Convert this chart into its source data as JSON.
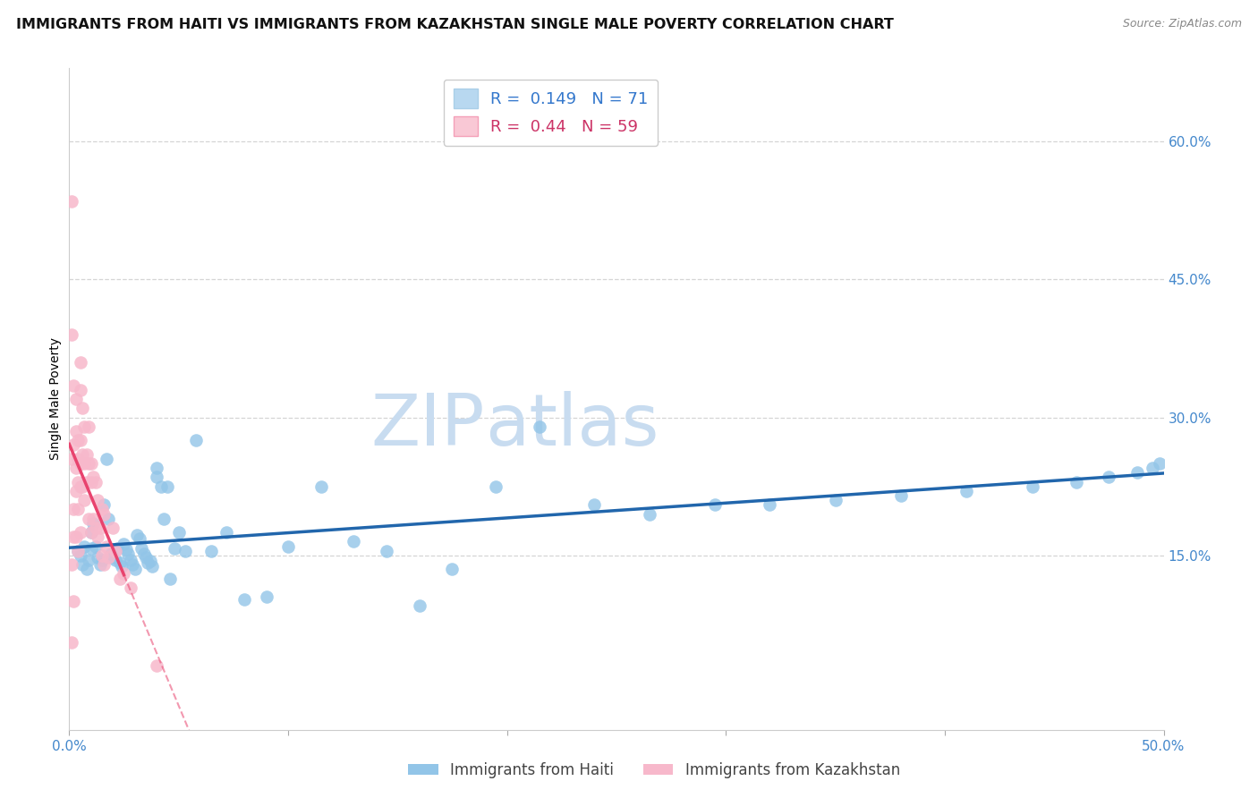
{
  "title": "IMMIGRANTS FROM HAITI VS IMMIGRANTS FROM KAZAKHSTAN SINGLE MALE POVERTY CORRELATION CHART",
  "source": "Source: ZipAtlas.com",
  "ylabel": "Single Male Poverty",
  "right_yticks": [
    "60.0%",
    "45.0%",
    "30.0%",
    "15.0%"
  ],
  "right_ytick_vals": [
    0.6,
    0.45,
    0.3,
    0.15
  ],
  "xlim": [
    0.0,
    0.5
  ],
  "ylim": [
    -0.04,
    0.68
  ],
  "haiti_R": 0.149,
  "haiti_N": 71,
  "kazakhstan_R": 0.44,
  "kazakhstan_N": 59,
  "haiti_color": "#92c5e8",
  "kazakhstan_color": "#f7b8cb",
  "haiti_line_color": "#2166ac",
  "kazakhstan_line_color": "#e8436e",
  "haiti_x": [
    0.004,
    0.005,
    0.006,
    0.007,
    0.008,
    0.009,
    0.01,
    0.01,
    0.011,
    0.012,
    0.013,
    0.014,
    0.015,
    0.016,
    0.017,
    0.018,
    0.019,
    0.02,
    0.021,
    0.022,
    0.023,
    0.024,
    0.025,
    0.026,
    0.027,
    0.028,
    0.029,
    0.03,
    0.031,
    0.032,
    0.033,
    0.034,
    0.035,
    0.036,
    0.037,
    0.038,
    0.04,
    0.04,
    0.042,
    0.043,
    0.045,
    0.046,
    0.048,
    0.05,
    0.053,
    0.058,
    0.065,
    0.072,
    0.08,
    0.09,
    0.1,
    0.115,
    0.13,
    0.145,
    0.16,
    0.175,
    0.195,
    0.215,
    0.24,
    0.265,
    0.295,
    0.32,
    0.35,
    0.38,
    0.41,
    0.44,
    0.46,
    0.475,
    0.488,
    0.495,
    0.498
  ],
  "haiti_y": [
    0.155,
    0.15,
    0.14,
    0.16,
    0.135,
    0.145,
    0.175,
    0.158,
    0.185,
    0.16,
    0.148,
    0.14,
    0.145,
    0.205,
    0.255,
    0.19,
    0.152,
    0.148,
    0.145,
    0.158,
    0.142,
    0.138,
    0.162,
    0.157,
    0.152,
    0.145,
    0.14,
    0.135,
    0.172,
    0.168,
    0.158,
    0.152,
    0.148,
    0.142,
    0.144,
    0.138,
    0.245,
    0.235,
    0.225,
    0.19,
    0.225,
    0.125,
    0.158,
    0.175,
    0.155,
    0.275,
    0.155,
    0.175,
    0.102,
    0.105,
    0.16,
    0.225,
    0.165,
    0.155,
    0.095,
    0.135,
    0.225,
    0.29,
    0.205,
    0.195,
    0.205,
    0.205,
    0.21,
    0.215,
    0.22,
    0.225,
    0.23,
    0.235,
    0.24,
    0.245,
    0.25
  ],
  "kazakhstan_x": [
    0.001,
    0.001,
    0.001,
    0.001,
    0.001,
    0.002,
    0.002,
    0.002,
    0.002,
    0.002,
    0.003,
    0.003,
    0.003,
    0.003,
    0.003,
    0.004,
    0.004,
    0.004,
    0.004,
    0.004,
    0.005,
    0.005,
    0.005,
    0.005,
    0.005,
    0.005,
    0.006,
    0.006,
    0.006,
    0.007,
    0.007,
    0.007,
    0.008,
    0.008,
    0.009,
    0.009,
    0.009,
    0.01,
    0.01,
    0.01,
    0.011,
    0.011,
    0.012,
    0.012,
    0.013,
    0.013,
    0.014,
    0.015,
    0.015,
    0.016,
    0.016,
    0.017,
    0.018,
    0.02,
    0.021,
    0.023,
    0.025,
    0.028,
    0.04
  ],
  "kazakhstan_y": [
    0.535,
    0.39,
    0.255,
    0.14,
    0.055,
    0.335,
    0.27,
    0.2,
    0.17,
    0.1,
    0.32,
    0.285,
    0.245,
    0.22,
    0.17,
    0.275,
    0.255,
    0.23,
    0.2,
    0.155,
    0.36,
    0.33,
    0.275,
    0.25,
    0.225,
    0.175,
    0.31,
    0.26,
    0.225,
    0.29,
    0.25,
    0.21,
    0.26,
    0.23,
    0.29,
    0.25,
    0.19,
    0.25,
    0.23,
    0.175,
    0.235,
    0.19,
    0.23,
    0.18,
    0.21,
    0.17,
    0.18,
    0.2,
    0.15,
    0.195,
    0.14,
    0.16,
    0.148,
    0.18,
    0.155,
    0.125,
    0.13,
    0.115,
    0.03
  ],
  "grid_color": "#d5d5d5",
  "background_color": "#ffffff",
  "watermark_zip": "ZIP",
  "watermark_atlas": "atlas",
  "watermark_color_zip": "#c8dcf0",
  "watermark_color_atlas": "#c8dcf0",
  "legend_box_color_haiti": "#b8d8f0",
  "legend_box_color_kazakhstan": "#f9c8d5",
  "title_fontsize": 11.5,
  "axis_label_fontsize": 10,
  "tick_fontsize": 11,
  "right_tick_color": "#4488cc",
  "xtick_color": "#4488cc"
}
